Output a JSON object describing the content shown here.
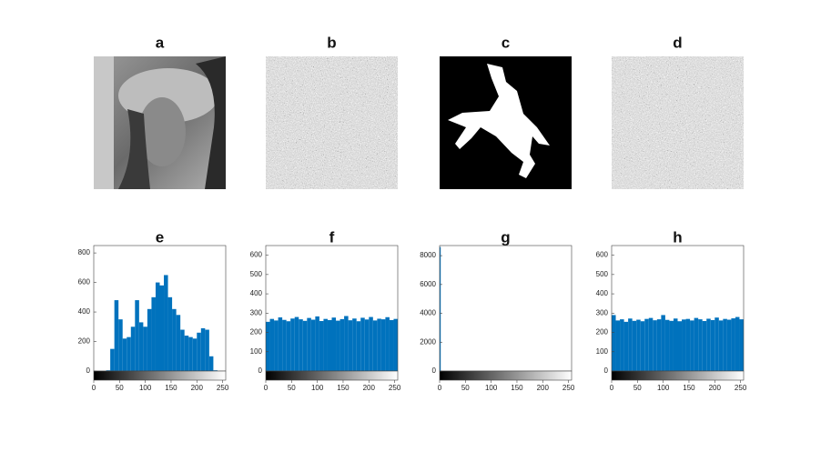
{
  "images": [
    {
      "title": "a"
    },
    {
      "title": "b"
    },
    {
      "title": "c"
    },
    {
      "title": "d"
    }
  ],
  "chart_data": [
    {
      "type": "histogram",
      "title": "e",
      "color": "#0072bd",
      "xlim": [
        0,
        256
      ],
      "xticks": [
        0,
        50,
        100,
        150,
        200,
        250
      ],
      "ylim": [
        0,
        850
      ],
      "yticks": [
        0,
        200,
        400,
        600,
        800
      ],
      "bins": [
        0,
        8,
        16,
        24,
        32,
        40,
        48,
        56,
        64,
        72,
        80,
        88,
        96,
        104,
        112,
        120,
        128,
        136,
        144,
        152,
        160,
        168,
        176,
        184,
        192,
        200,
        208,
        216,
        224,
        232,
        240,
        248,
        256
      ],
      "values": [
        0,
        0,
        0,
        5,
        150,
        480,
        350,
        220,
        230,
        300,
        480,
        330,
        300,
        420,
        500,
        600,
        580,
        650,
        500,
        420,
        380,
        280,
        240,
        230,
        220,
        260,
        290,
        280,
        100,
        5,
        0,
        0
      ]
    },
    {
      "type": "histogram",
      "title": "f",
      "color": "#0072bd",
      "xlim": [
        0,
        256
      ],
      "xticks": [
        0,
        50,
        100,
        150,
        200,
        250
      ],
      "ylim": [
        0,
        650
      ],
      "yticks": [
        0,
        100,
        200,
        300,
        400,
        500,
        600
      ],
      "bins": [
        0,
        8,
        16,
        24,
        32,
        40,
        48,
        56,
        64,
        72,
        80,
        88,
        96,
        104,
        112,
        120,
        128,
        136,
        144,
        152,
        160,
        168,
        176,
        184,
        192,
        200,
        208,
        216,
        224,
        232,
        240,
        248,
        256
      ],
      "values": [
        255,
        270,
        262,
        278,
        265,
        258,
        272,
        280,
        268,
        260,
        275,
        266,
        283,
        259,
        270,
        264,
        277,
        261,
        269,
        285,
        263,
        272,
        258,
        276,
        267,
        280,
        262,
        271,
        268,
        279,
        264,
        270
      ]
    },
    {
      "type": "histogram",
      "title": "g",
      "color": "#0072bd",
      "xlim": [
        0,
        256
      ],
      "xticks": [
        0,
        50,
        100,
        150,
        200,
        250
      ],
      "ylim": [
        0,
        8700
      ],
      "yticks": [
        0,
        2000,
        4000,
        6000,
        8000
      ],
      "bins": [
        0,
        8,
        16,
        24,
        32,
        40,
        48,
        56,
        64,
        72,
        80,
        88,
        96,
        104,
        112,
        120,
        128,
        136,
        144,
        152,
        160,
        168,
        176,
        184,
        192,
        200,
        208,
        216,
        224,
        232,
        240,
        248,
        256
      ],
      "values": [
        8600,
        0,
        0,
        0,
        0,
        0,
        0,
        0,
        0,
        0,
        0,
        0,
        0,
        0,
        0,
        0,
        0,
        0,
        0,
        0,
        0,
        0,
        0,
        0,
        0,
        0,
        0,
        0,
        0,
        0,
        0,
        0
      ]
    },
    {
      "type": "histogram",
      "title": "h",
      "color": "#0072bd",
      "xlim": [
        0,
        256
      ],
      "xticks": [
        0,
        50,
        100,
        150,
        200,
        250
      ],
      "ylim": [
        0,
        650
      ],
      "yticks": [
        0,
        100,
        200,
        300,
        400,
        500,
        600
      ],
      "bins": [
        0,
        8,
        16,
        24,
        32,
        40,
        48,
        56,
        64,
        72,
        80,
        88,
        96,
        104,
        112,
        120,
        128,
        136,
        144,
        152,
        160,
        168,
        176,
        184,
        192,
        200,
        208,
        216,
        224,
        232,
        240,
        248,
        256
      ],
      "values": [
        290,
        262,
        268,
        255,
        272,
        260,
        266,
        258,
        270,
        275,
        263,
        268,
        290,
        265,
        260,
        272,
        258,
        267,
        270,
        262,
        275,
        268,
        259,
        271,
        264,
        277,
        262,
        270,
        266,
        273,
        280,
        268
      ]
    }
  ]
}
